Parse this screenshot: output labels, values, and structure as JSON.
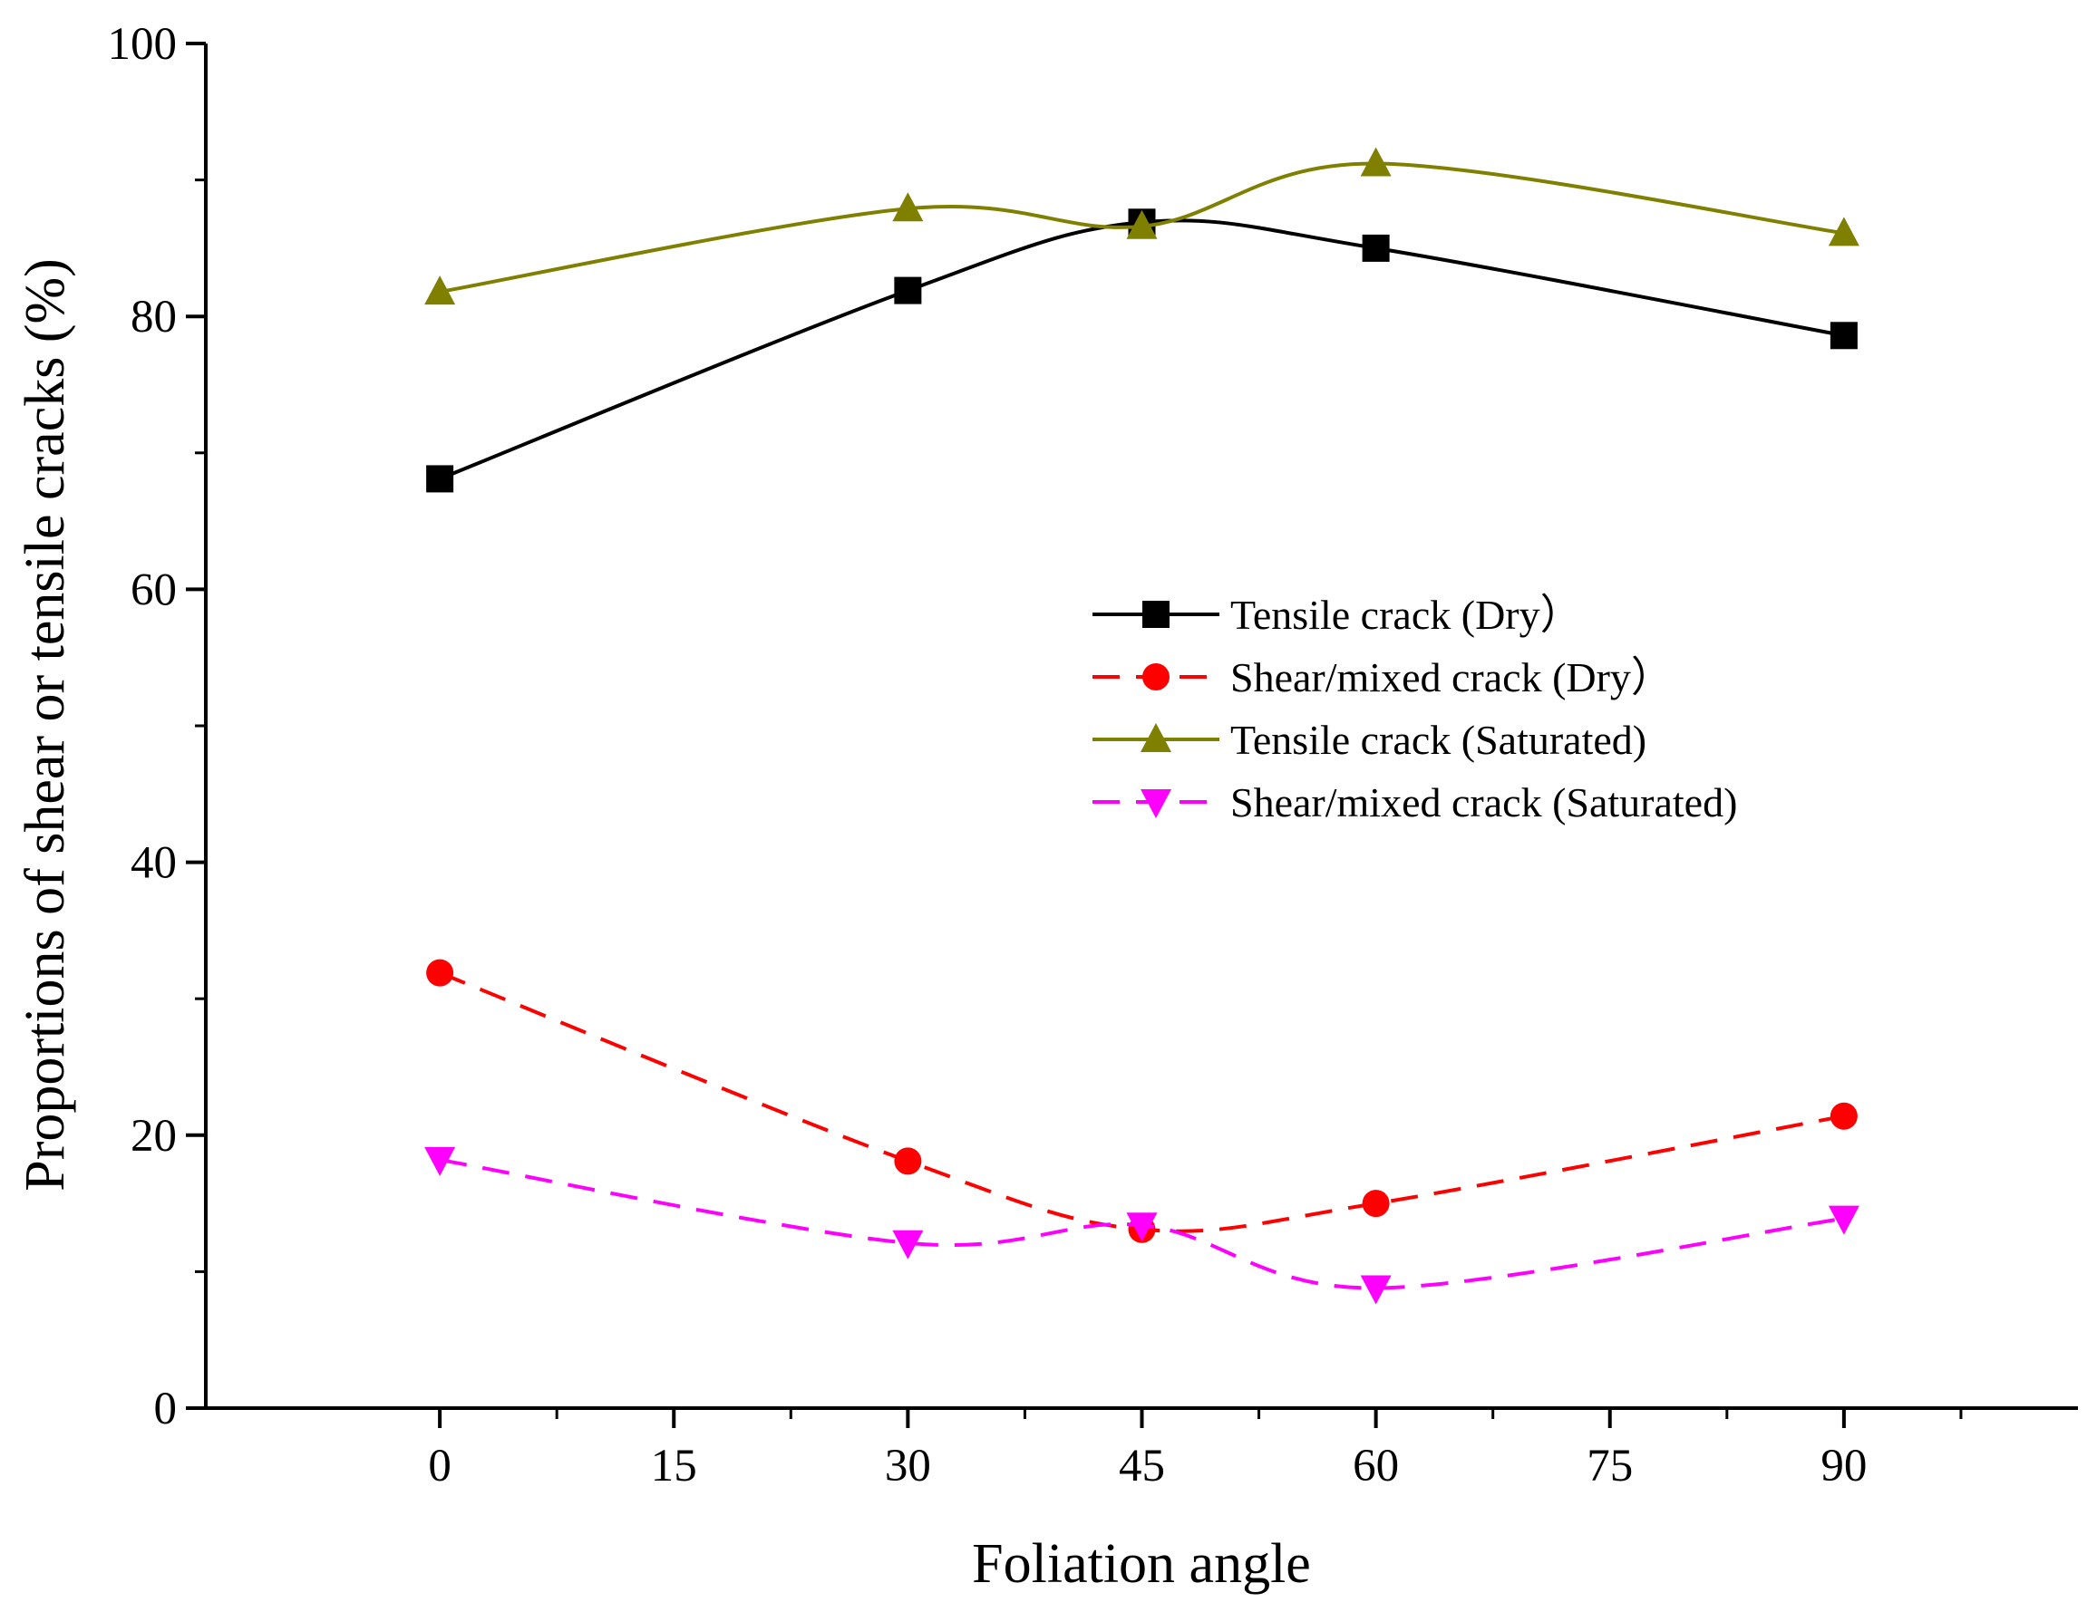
{
  "chart_data": {
    "type": "line",
    "title": "",
    "xlabel": "Foliation angle",
    "ylabel": "Proportions of shear or tensile cracks (%)",
    "xlim": [
      -15,
      105
    ],
    "ylim": [
      0,
      100
    ],
    "x_ticks": [
      "0",
      "15",
      "30",
      "45",
      "60",
      "75",
      "90"
    ],
    "y_ticks": [
      "0",
      "20",
      "40",
      "60",
      "80",
      "100"
    ],
    "x": [
      0,
      30,
      45,
      60,
      90
    ],
    "grid": false,
    "legend_position": "center-right",
    "series": [
      {
        "name": "Tensile crack (Dry）",
        "values": [
          68.1,
          81.9,
          86.9,
          85.0,
          78.6
        ],
        "color": "#000000",
        "marker": "square",
        "dash": "solid"
      },
      {
        "name": "Shear/mixed crack (Dry）",
        "values": [
          31.9,
          18.1,
          13.1,
          15.0,
          21.4
        ],
        "color": "#ff0000",
        "marker": "circle",
        "dash": "dashed"
      },
      {
        "name": "Tensile crack (Saturated)",
        "values": [
          81.8,
          87.9,
          86.6,
          91.2,
          86.1
        ],
        "color": "#808000",
        "marker": "triangle-up",
        "dash": "solid"
      },
      {
        "name": "Shear/mixed  crack (Saturated)",
        "values": [
          18.2,
          12.1,
          13.4,
          8.8,
          13.9
        ],
        "color": "#ff00ff",
        "marker": "triangle-down",
        "dash": "dashed"
      }
    ]
  }
}
